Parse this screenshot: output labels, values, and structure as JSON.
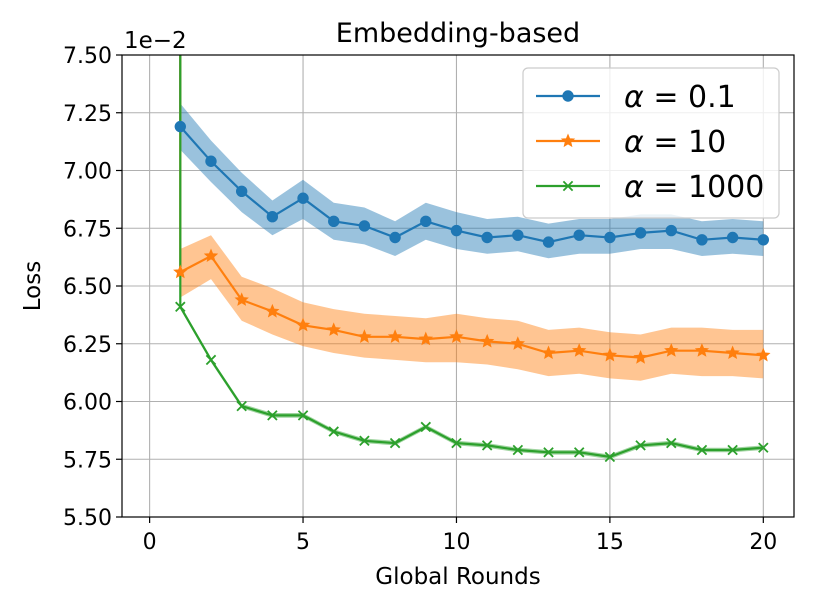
{
  "chart_data": {
    "type": "line",
    "title": "Embedding-based",
    "xlabel": "Global Rounds",
    "ylabel": "Loss",
    "scale_note": "1e−2",
    "xlim": [
      -0.9,
      21
    ],
    "ylim": [
      5.5,
      7.5
    ],
    "xticks": [
      0,
      5,
      10,
      15,
      20
    ],
    "xtick_labels": [
      "0",
      "5",
      "10",
      "15",
      "20"
    ],
    "yticks": [
      5.5,
      5.75,
      6.0,
      6.25,
      6.5,
      6.75,
      7.0,
      7.25,
      7.5
    ],
    "ytick_labels": [
      "5.50",
      "5.75",
      "6.00",
      "6.25",
      "6.50",
      "6.75",
      "7.00",
      "7.25",
      "7.50"
    ],
    "grid": true,
    "legend_position": "top-right",
    "x": [
      1,
      2,
      3,
      4,
      5,
      6,
      7,
      8,
      9,
      10,
      11,
      12,
      13,
      14,
      15,
      16,
      17,
      18,
      19,
      20
    ],
    "series": [
      {
        "name_prefix": "α",
        "name_value": "0.1",
        "color": "#1f77b4",
        "marker": "circle",
        "values": [
          7.19,
          7.04,
          6.91,
          6.8,
          6.88,
          6.78,
          6.76,
          6.71,
          6.78,
          6.74,
          6.71,
          6.72,
          6.69,
          6.72,
          6.71,
          6.73,
          6.74,
          6.7,
          6.71,
          6.7
        ],
        "band_lower": [
          7.09,
          6.95,
          6.82,
          6.72,
          6.79,
          6.7,
          6.68,
          6.63,
          6.7,
          6.66,
          6.64,
          6.65,
          6.62,
          6.64,
          6.64,
          6.66,
          6.66,
          6.63,
          6.64,
          6.63
        ],
        "band_upper": [
          7.29,
          7.13,
          6.99,
          6.87,
          6.96,
          6.86,
          6.84,
          6.78,
          6.86,
          6.82,
          6.79,
          6.8,
          6.77,
          6.79,
          6.79,
          6.81,
          6.81,
          6.78,
          6.79,
          6.78
        ],
        "spike_from": 7.5
      },
      {
        "name_prefix": "α",
        "name_value": "10",
        "color": "#ff7f0e",
        "marker": "star",
        "values": [
          6.56,
          6.63,
          6.44,
          6.39,
          6.33,
          6.31,
          6.28,
          6.28,
          6.27,
          6.28,
          6.26,
          6.25,
          6.21,
          6.22,
          6.2,
          6.19,
          6.22,
          6.22,
          6.21,
          6.2
        ],
        "band_lower": [
          6.45,
          6.53,
          6.35,
          6.29,
          6.24,
          6.21,
          6.19,
          6.18,
          6.17,
          6.17,
          6.16,
          6.14,
          6.11,
          6.12,
          6.1,
          6.09,
          6.12,
          6.11,
          6.11,
          6.1
        ],
        "band_upper": [
          6.66,
          6.72,
          6.54,
          6.49,
          6.43,
          6.4,
          6.38,
          6.37,
          6.36,
          6.38,
          6.36,
          6.35,
          6.31,
          6.32,
          6.3,
          6.29,
          6.32,
          6.32,
          6.31,
          6.31
        ],
        "spike_from": 7.5
      },
      {
        "name_prefix": "α",
        "name_value": "1000",
        "color": "#2ca02c",
        "marker": "x",
        "values": [
          6.41,
          6.18,
          5.98,
          5.94,
          5.94,
          5.87,
          5.83,
          5.82,
          5.89,
          5.82,
          5.81,
          5.79,
          5.78,
          5.78,
          5.76,
          5.81,
          5.82,
          5.79,
          5.79,
          5.8
        ],
        "band_lower": [
          6.4,
          6.17,
          5.97,
          5.93,
          5.93,
          5.86,
          5.82,
          5.81,
          5.88,
          5.81,
          5.8,
          5.78,
          5.77,
          5.77,
          5.75,
          5.8,
          5.81,
          5.78,
          5.78,
          5.79
        ],
        "band_upper": [
          6.42,
          6.19,
          5.99,
          5.95,
          5.95,
          5.88,
          5.84,
          5.83,
          5.9,
          5.83,
          5.82,
          5.8,
          5.79,
          5.79,
          5.77,
          5.82,
          5.83,
          5.8,
          5.8,
          5.81
        ],
        "spike_from": 7.5
      }
    ]
  }
}
